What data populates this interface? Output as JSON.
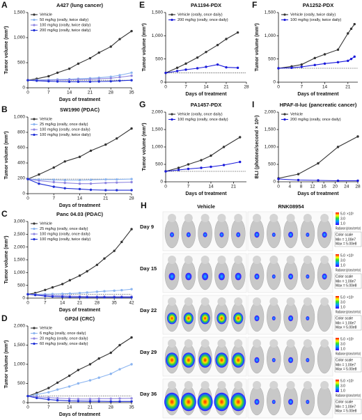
{
  "chart_data": [
    {
      "type": "line",
      "panel": "A",
      "title": "A427 (lung cancer)",
      "x_label": "Days of treatment",
      "y_label": "Tumor volume (mm³)",
      "x": [
        0,
        3,
        7,
        10,
        14,
        17,
        21,
        24,
        28,
        31,
        35
      ],
      "xlim": [
        0,
        35
      ],
      "xticks": [
        0,
        7,
        14,
        21,
        28,
        35
      ],
      "ylim": [
        0,
        1500
      ],
      "yticks": [
        0,
        500,
        {
          "value": 1000,
          "label": "1,000"
        },
        {
          "value": 1500,
          "label": "1,500"
        }
      ],
      "hline": 150,
      "series": [
        {
          "name": "Vehicle",
          "color": "#333333",
          "values": [
            150,
            180,
            230,
            300,
            380,
            480,
            590,
            700,
            820,
            970,
            1130
          ]
        },
        {
          "name": "50 mg/kg (orally, twice daily)",
          "color": "#8ab4f0",
          "values": [
            150,
            155,
            160,
            165,
            170,
            180,
            190,
            200,
            220,
            250,
            300
          ]
        },
        {
          "name": "100 mg/kg (orally, twice daily)",
          "color": "#8f86e0",
          "values": [
            150,
            150,
            150,
            155,
            160,
            165,
            170,
            180,
            190,
            210,
            240
          ]
        },
        {
          "name": "200 mg/kg (orally, twice daily)",
          "color": "#1f2fd6",
          "values": [
            150,
            140,
            130,
            125,
            120,
            120,
            120,
            125,
            130,
            140,
            150
          ]
        }
      ]
    },
    {
      "type": "line",
      "panel": "B",
      "title": "SW1990 (PDAC)",
      "x_label": "Days of treatment",
      "y_label": "Tumor volume (mm³)",
      "x": [
        0,
        3,
        7,
        10,
        14,
        17,
        21,
        24,
        28
      ],
      "xlim": [
        0,
        28
      ],
      "xticks": [
        0,
        7,
        14,
        21,
        28
      ],
      "ylim": [
        0,
        1000
      ],
      "yticks": [
        0,
        200,
        400,
        600,
        800,
        {
          "value": 1000,
          "label": "1,000"
        }
      ],
      "hline": 190,
      "series": [
        {
          "name": "Vehicle",
          "color": "#333333",
          "values": [
            190,
            250,
            340,
            420,
            480,
            560,
            640,
            720,
            850
          ]
        },
        {
          "name": "25 mg/kg (orally, once daily)",
          "color": "#8ab4f0",
          "values": [
            190,
            185,
            180,
            175,
            175,
            180,
            185,
            185,
            190
          ]
        },
        {
          "name": "100 mg/kg (orally, once daily)",
          "color": "#8f86e0",
          "values": [
            190,
            170,
            150,
            140,
            130,
            130,
            140,
            145,
            150
          ]
        },
        {
          "name": "100 mg/kg (orally, twice daily)",
          "color": "#1f2fd6",
          "values": [
            190,
            130,
            90,
            70,
            60,
            50,
            45,
            45,
            45
          ]
        }
      ]
    },
    {
      "type": "line",
      "panel": "C",
      "title": "Panc 04.03 (PDAC)",
      "x_label": "Days of treatment",
      "y_label": "Tumor volume (mm³)",
      "x": [
        0,
        3,
        7,
        10,
        14,
        17,
        21,
        24,
        28,
        31,
        35,
        38,
        42
      ],
      "xlim": [
        0,
        42
      ],
      "xticks": [
        0,
        7,
        14,
        21,
        28,
        35,
        42
      ],
      "ylim": [
        0,
        3000
      ],
      "yticks": [
        0,
        500,
        {
          "value": 1000,
          "label": "1,000"
        },
        {
          "value": 1500,
          "label": "1,500"
        },
        {
          "value": 2000,
          "label": "2,000"
        },
        {
          "value": 2500,
          "label": "2,500"
        },
        {
          "value": 3000,
          "label": "3,000"
        }
      ],
      "hline": 150,
      "series": [
        {
          "name": "Vehicle",
          "color": "#333333",
          "values": [
            150,
            200,
            320,
            420,
            550,
            700,
            880,
            1050,
            1300,
            1550,
            1850,
            2200,
            2700
          ]
        },
        {
          "name": "25 mg/kg (orally, once daily)",
          "color": "#8ab4f0",
          "values": [
            150,
            150,
            155,
            160,
            170,
            180,
            200,
            220,
            250,
            270,
            290,
            310,
            350
          ]
        },
        {
          "name": "100 mg/kg (orally, once daily)",
          "color": "#8f86e0",
          "values": [
            150,
            140,
            120,
            100,
            90,
            80,
            70,
            65,
            60,
            60,
            60,
            60,
            60
          ]
        },
        {
          "name": "100 mg/kg (orally, twice daily)",
          "color": "#1f2fd6",
          "values": [
            150,
            120,
            80,
            60,
            50,
            40,
            35,
            30,
            30,
            30,
            30,
            30,
            30
          ]
        }
      ]
    },
    {
      "type": "line",
      "panel": "D",
      "title": "GP2d (CRC)",
      "x_label": "Days of treatment",
      "y_label": "Tumor volume (mm³)",
      "x": [
        0,
        3,
        7,
        10,
        14,
        17,
        21,
        24,
        28,
        31,
        35
      ],
      "xlim": [
        0,
        35
      ],
      "xticks": [
        0,
        7,
        14,
        21,
        28,
        35
      ],
      "ylim": [
        0,
        2000
      ],
      "yticks": [
        0,
        500,
        {
          "value": 1000,
          "label": "1,000"
        },
        {
          "value": 1500,
          "label": "1,500"
        },
        {
          "value": 2000,
          "label": "2,000"
        }
      ],
      "hline": 170,
      "series": [
        {
          "name": "Vehicle",
          "color": "#333333",
          "values": [
            170,
            250,
            380,
            520,
            700,
            850,
            1000,
            1150,
            1300,
            1500,
            1700
          ]
        },
        {
          "name": "6 mg/kg (orally, once daily)",
          "color": "#8ab4f0",
          "values": [
            170,
            210,
            270,
            340,
            420,
            500,
            580,
            650,
            750,
            870,
            1000
          ]
        },
        {
          "name": "20 mg/kg (orally, once daily)",
          "color": "#8f86e0",
          "values": [
            170,
            150,
            130,
            115,
            100,
            95,
            95,
            100,
            100,
            105,
            110
          ]
        },
        {
          "name": "60 mg/kg (orally, once daily)",
          "color": "#1f2fd6",
          "values": [
            170,
            120,
            80,
            60,
            45,
            40,
            35,
            35,
            30,
            30,
            30
          ]
        }
      ]
    },
    {
      "type": "line",
      "panel": "E",
      "title": "PA1194-PDX",
      "x_label": "Days of treatment",
      "y_label": "Tumor volume (mm³)",
      "x": [
        0,
        4,
        7,
        11,
        14,
        18,
        21,
        25
      ],
      "xlim": [
        0,
        28
      ],
      "xticks": [
        0,
        7,
        14,
        21,
        28
      ],
      "ylim": [
        0,
        1500
      ],
      "yticks": [
        0,
        500,
        {
          "value": 1000,
          "label": "1,000"
        },
        {
          "value": 1500,
          "label": "1,500"
        }
      ],
      "hline": 200,
      "series": [
        {
          "name": "Vehicle (orally, once daily)",
          "color": "#333333",
          "values": [
            200,
            310,
            400,
            530,
            650,
            800,
            930,
            1070
          ]
        },
        {
          "name": "200 mg/kg (orally, once daily)",
          "color": "#1a1adb",
          "values": [
            200,
            240,
            270,
            300,
            330,
            380,
            320,
            310
          ]
        }
      ]
    },
    {
      "type": "line",
      "panel": "F",
      "title": "PA1252-PDX",
      "x_label": "Days of treatment",
      "y_label": "Tumor volume (mm³)",
      "x": [
        0,
        4,
        7,
        11,
        14,
        18,
        21,
        22,
        23
      ],
      "xlim": [
        0,
        24
      ],
      "xticks": [
        0,
        7,
        14,
        21
      ],
      "ylim": [
        0,
        1500
      ],
      "yticks": [
        0,
        500,
        {
          "value": 1000,
          "label": "1,000"
        },
        {
          "value": 1500,
          "label": "1,500"
        }
      ],
      "hline": 300,
      "series": [
        {
          "name": "Vehicle (orally, twice daily)",
          "color": "#333333",
          "values": [
            300,
            340,
            380,
            520,
            600,
            700,
            1050,
            1150,
            1250
          ]
        },
        {
          "name": "100 mg/kg (orally, twice daily)",
          "color": "#1a1adb",
          "values": [
            300,
            310,
            330,
            370,
            400,
            430,
            460,
            500,
            550
          ]
        }
      ]
    },
    {
      "type": "line",
      "panel": "G",
      "title": "PA1457-PDX",
      "x_label": "Days of treatment",
      "y_label": "Tumor volume (mm³)",
      "x": [
        0,
        4,
        7,
        11,
        14,
        18,
        23
      ],
      "xlim": [
        0,
        25
      ],
      "xticks": [
        0,
        7,
        14,
        21
      ],
      "ylim": [
        0,
        2000
      ],
      "yticks": [
        0,
        500,
        {
          "value": 1000,
          "label": "1,000"
        },
        {
          "value": 1500,
          "label": "1,500"
        },
        {
          "value": 2000,
          "label": "2,000"
        }
      ],
      "hline": 300,
      "series": [
        {
          "name": "Vehicle (orally, once daily)",
          "color": "#333333",
          "values": [
            300,
            400,
            500,
            620,
            750,
            1000,
            1280
          ]
        },
        {
          "name": "100 mg/kg (orally, once daily)",
          "color": "#1a1adb",
          "values": [
            300,
            340,
            370,
            400,
            430,
            480,
            570
          ]
        }
      ]
    },
    {
      "type": "line",
      "panel": "I",
      "title": "HPAF-II-luc (pancreatic cancer)",
      "x_label": "Days of treatment",
      "y_label": "BLI (photons/second × 10⁶)",
      "x": [
        0,
        7,
        14,
        21,
        28
      ],
      "xlim": [
        0,
        28
      ],
      "xticks": [
        0,
        4,
        8,
        12,
        16,
        20,
        24,
        28
      ],
      "ylim": [
        0,
        2000
      ],
      "yticks": [
        0,
        500,
        {
          "value": 1000,
          "label": "1,000"
        },
        {
          "value": 1500,
          "label": "1,500"
        },
        {
          "value": 2000,
          "label": "2,000"
        }
      ],
      "series": [
        {
          "name": "Vehicle",
          "color": "#333333",
          "values": [
            100,
            220,
            530,
            1000,
            1300
          ]
        },
        {
          "name": "200 mg/kg (orally, once daily)",
          "color": "#1a1adb",
          "values": [
            80,
            50,
            40,
            30,
            30
          ]
        }
      ]
    }
  ],
  "image_panel": {
    "panel": "H",
    "columns": [
      "Vehicle",
      "RNK08954"
    ],
    "rows": [
      "Day 9",
      "Day 15",
      "Day 22",
      "Day 29",
      "Day 36"
    ],
    "scale": {
      "ticks": [
        "5.0",
        "3.0",
        "1.0"
      ],
      "exponent": "×10⁷",
      "unit": "Radiance (p/sec/cm²/sr)",
      "title": "Color scale",
      "min": "Min = 1.00e7",
      "max": "Max = 5.00e8"
    }
  }
}
